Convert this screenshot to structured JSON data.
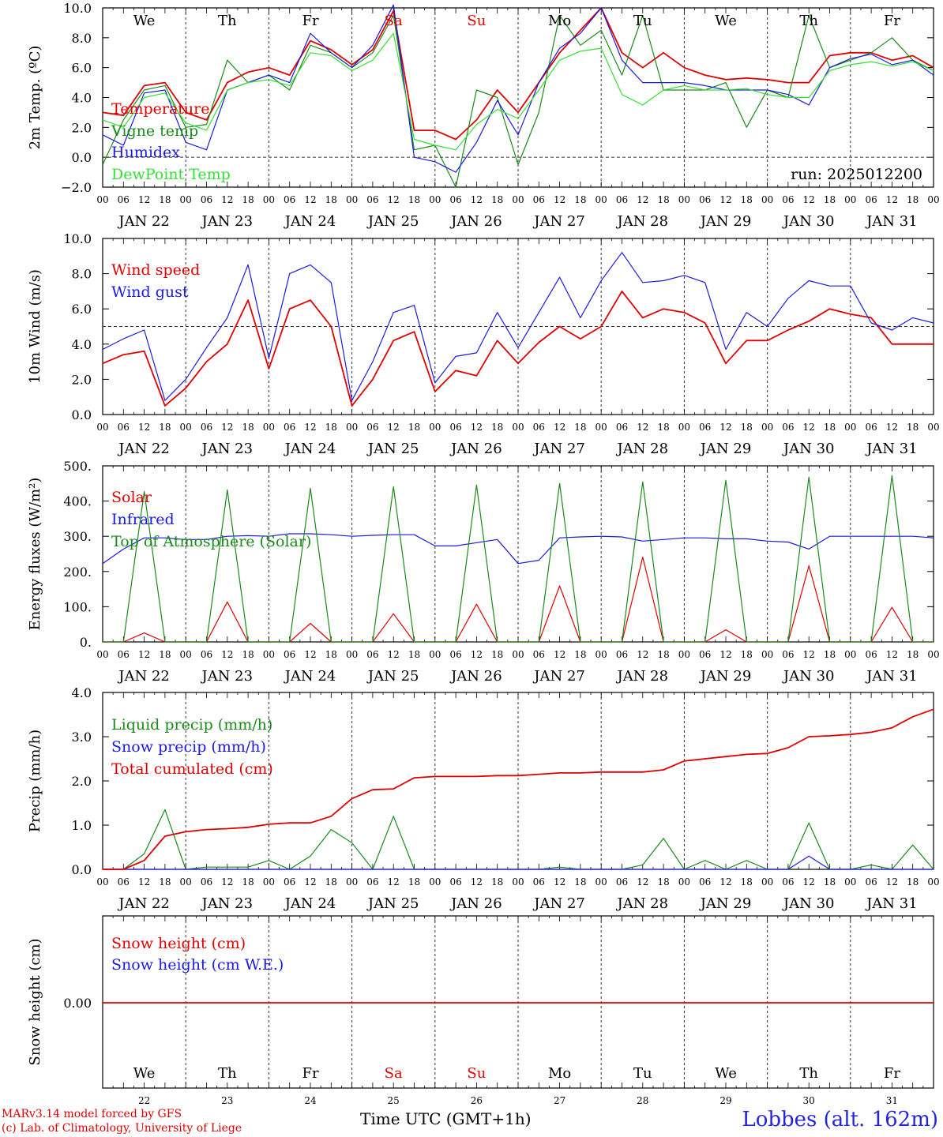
{
  "footer": {
    "model_line": "MARv3.14 model forced by GFS",
    "lab_line": "(c) Lab. of Climatology, University of Liege",
    "xaxis_title": "Time UTC (GMT+1h)",
    "station": "Lobbes (alt. 162m)"
  },
  "colors": {
    "red": "#e00000",
    "green": "#1a8a1a",
    "blue": "#1a1ae0",
    "lightgreen": "#33e033",
    "grid": "#555555"
  },
  "axis": {
    "days": [
      "JAN 22",
      "JAN 23",
      "JAN 24",
      "JAN 25",
      "JAN 26",
      "JAN 27",
      "JAN 28",
      "JAN 29",
      "JAN 30",
      "JAN 31"
    ],
    "hour_ticks": [
      "00",
      "06",
      "12",
      "18"
    ],
    "end_tick": "00",
    "weekdays": [
      "We",
      "Th",
      "Fr",
      "Sa",
      "Su",
      "Mo",
      "Tu",
      "We",
      "Th",
      "Fr"
    ],
    "weekend_color": "#e00000",
    "day_numbers": [
      "22",
      "23",
      "24",
      "25",
      "26",
      "27",
      "28",
      "29",
      "30",
      "31"
    ]
  },
  "chart_data": [
    {
      "type": "line",
      "ylabel": "2m Temp. (ºC)",
      "ylim": [
        -2,
        10
      ],
      "yticks": [
        "−2.0",
        "0.0",
        "2.0",
        "4.0",
        "6.0",
        "8.0",
        "10.0"
      ],
      "reference_line": 0,
      "annotation": "run: 2025012200",
      "x_hours_from_jan22_00": [
        0,
        6,
        12,
        18,
        24,
        30,
        36,
        42,
        48,
        54,
        60,
        66,
        72,
        78,
        84,
        90,
        96,
        102,
        108,
        114,
        120,
        126,
        132,
        138,
        144,
        150,
        156,
        162,
        168,
        174,
        180,
        186,
        192,
        198,
        204,
        210,
        216,
        222,
        228,
        234,
        240
      ],
      "series": [
        {
          "name": "Temperature",
          "color": "#e00000",
          "values": [
            3.0,
            2.8,
            4.8,
            5.0,
            3.0,
            2.5,
            5.0,
            5.7,
            6.0,
            5.5,
            7.8,
            7.2,
            6.2,
            7.2,
            9.8,
            1.8,
            1.8,
            1.2,
            2.5,
            4.5,
            3.0,
            5.0,
            7.0,
            8.5,
            10.0,
            7.0,
            6.0,
            7.0,
            6.0,
            5.5,
            5.2,
            5.3,
            5.2,
            5.0,
            5.0,
            6.8,
            7.0,
            7.0,
            6.5,
            6.8,
            6.0
          ]
        },
        {
          "name": "Vigne temp",
          "color": "#1a8a1a",
          "values": [
            -0.5,
            2.5,
            4.5,
            4.8,
            2.0,
            2.2,
            6.5,
            5.0,
            5.5,
            4.5,
            7.5,
            7.0,
            6.0,
            7.0,
            9.5,
            0.5,
            0.8,
            -2.0,
            4.5,
            4.0,
            -0.5,
            3.0,
            9.5,
            7.5,
            8.5,
            5.5,
            9.5,
            4.5,
            4.5,
            4.5,
            5.0,
            2.0,
            4.5,
            4.0,
            9.5,
            6.0,
            6.5,
            7.0,
            8.0,
            6.5,
            5.8
          ]
        },
        {
          "name": "Humidex",
          "color": "#1a1ae0",
          "values": [
            1.5,
            0.8,
            4.3,
            4.5,
            1.0,
            0.5,
            4.5,
            5.0,
            5.5,
            5.0,
            8.3,
            7.0,
            6.0,
            7.5,
            10.2,
            0.0,
            -0.3,
            -1.0,
            1.0,
            3.8,
            1.5,
            5.0,
            7.3,
            8.3,
            10.0,
            6.5,
            5.0,
            5.0,
            5.0,
            4.8,
            4.5,
            4.5,
            4.5,
            4.2,
            3.5,
            6.0,
            6.6,
            6.9,
            6.2,
            6.5,
            5.5
          ]
        },
        {
          "name": "DewPoint Temp",
          "color": "#33e033",
          "values": [
            2.5,
            2.0,
            4.0,
            4.3,
            2.3,
            1.8,
            4.5,
            5.0,
            5.2,
            4.8,
            7.0,
            6.8,
            5.8,
            6.5,
            8.3,
            1.2,
            0.8,
            0.5,
            2.2,
            3.2,
            2.6,
            4.5,
            6.5,
            7.1,
            7.3,
            4.2,
            3.5,
            4.5,
            4.8,
            4.5,
            4.5,
            4.6,
            4.2,
            4.0,
            4.0,
            5.8,
            6.2,
            6.4,
            6.1,
            6.4,
            5.8
          ]
        }
      ]
    },
    {
      "type": "line",
      "ylabel": "10m Wind (m/s)",
      "ylim": [
        0,
        10
      ],
      "yticks": [
        "0.0",
        "2.0",
        "4.0",
        "6.0",
        "8.0",
        "10.0"
      ],
      "reference_line": 5,
      "x_hours_from_jan22_00": [
        0,
        6,
        12,
        18,
        24,
        30,
        36,
        42,
        48,
        54,
        60,
        66,
        72,
        78,
        84,
        90,
        96,
        102,
        108,
        114,
        120,
        126,
        132,
        138,
        144,
        150,
        156,
        162,
        168,
        174,
        180,
        186,
        192,
        198,
        204,
        210,
        216,
        222,
        228,
        234,
        240
      ],
      "series": [
        {
          "name": "Wind speed",
          "color": "#e00000",
          "values": [
            2.9,
            3.4,
            3.6,
            0.5,
            1.5,
            3.0,
            4.0,
            6.5,
            2.6,
            6.0,
            6.5,
            5.0,
            0.5,
            2.0,
            4.2,
            4.7,
            1.3,
            2.5,
            2.2,
            4.2,
            2.9,
            4.1,
            5.0,
            4.3,
            5.0,
            7.0,
            5.5,
            6.0,
            5.8,
            5.2,
            2.9,
            4.2,
            4.2,
            4.8,
            5.3,
            6.0,
            5.7,
            5.5,
            4.0,
            4.0,
            4.0
          ]
        },
        {
          "name": "Wind gust",
          "color": "#1a1ae0",
          "values": [
            3.7,
            4.3,
            4.8,
            0.8,
            2.0,
            3.8,
            5.5,
            8.5,
            3.2,
            8.0,
            8.5,
            7.5,
            0.8,
            3.0,
            5.8,
            6.2,
            1.8,
            3.3,
            3.5,
            5.8,
            3.8,
            5.8,
            7.8,
            5.5,
            7.6,
            9.2,
            7.5,
            7.6,
            7.9,
            7.5,
            3.7,
            5.8,
            5.0,
            6.6,
            7.6,
            7.3,
            7.3,
            5.2,
            4.8,
            5.5,
            5.2
          ]
        }
      ]
    },
    {
      "type": "line",
      "ylabel": "Energy fluxes (W/m²)",
      "ylim": [
        0,
        550
      ],
      "yticks": [
        "0.",
        "100.",
        "200.",
        "300.",
        "400.",
        "500."
      ],
      "x_hours_from_jan22_00": [
        0,
        6,
        12,
        18,
        24,
        30,
        36,
        42,
        48,
        54,
        60,
        66,
        72,
        78,
        84,
        90,
        96,
        102,
        108,
        114,
        120,
        126,
        132,
        138,
        144,
        150,
        156,
        162,
        168,
        174,
        180,
        186,
        192,
        198,
        204,
        210,
        216,
        222,
        228,
        234,
        240
      ],
      "series": [
        {
          "name": "Solar",
          "color": "#e00000",
          "values": [
            0,
            0,
            28,
            0,
            0,
            0,
            125,
            0,
            0,
            0,
            58,
            0,
            0,
            0,
            88,
            0,
            0,
            0,
            118,
            0,
            0,
            0,
            175,
            0,
            0,
            0,
            265,
            0,
            0,
            0,
            38,
            0,
            0,
            0,
            238,
            0,
            0,
            0,
            108,
            0,
            0
          ]
        },
        {
          "name": "Infrared",
          "color": "#1a1ae0",
          "values": [
            245,
            290,
            325,
            325,
            320,
            320,
            330,
            332,
            330,
            338,
            338,
            335,
            330,
            333,
            335,
            335,
            300,
            300,
            310,
            320,
            245,
            255,
            325,
            328,
            330,
            328,
            315,
            320,
            325,
            325,
            322,
            322,
            315,
            312,
            290,
            330,
            330,
            330,
            330,
            330,
            325
          ]
        },
        {
          "name": "Top of Atmosphere (Solar)",
          "color": "#1a8a1a",
          "values": [
            0,
            0,
            470,
            0,
            0,
            0,
            475,
            0,
            0,
            0,
            480,
            0,
            0,
            0,
            485,
            0,
            0,
            0,
            490,
            0,
            0,
            0,
            495,
            0,
            0,
            0,
            500,
            0,
            0,
            0,
            505,
            0,
            0,
            0,
            515,
            0,
            0,
            0,
            520,
            0,
            0
          ]
        }
      ]
    },
    {
      "type": "line",
      "ylabel": "Precip (mm/h)",
      "ylim": [
        0,
        4
      ],
      "yticks": [
        "0.0",
        "1.0",
        "2.0",
        "3.0",
        "4.0"
      ],
      "x_hours_from_jan22_00": [
        0,
        6,
        12,
        18,
        24,
        30,
        36,
        42,
        48,
        54,
        60,
        66,
        72,
        78,
        84,
        90,
        96,
        102,
        108,
        114,
        120,
        126,
        132,
        138,
        144,
        150,
        156,
        162,
        168,
        174,
        180,
        186,
        192,
        198,
        204,
        210,
        216,
        222,
        228,
        234,
        240
      ],
      "series": [
        {
          "name": "Liquid precip (mm/h)",
          "color": "#1a8a1a",
          "values": [
            0,
            0,
            0.35,
            1.35,
            0,
            0.05,
            0.05,
            0.05,
            0.2,
            0,
            0.3,
            0.9,
            0.6,
            0,
            1.2,
            0,
            0,
            0,
            0,
            0,
            0,
            0,
            0.05,
            0,
            0,
            0,
            0.1,
            0.7,
            0,
            0.2,
            0,
            0.2,
            0,
            0,
            1.05,
            0,
            0,
            0.1,
            0,
            0.55,
            0
          ]
        },
        {
          "name": "Snow precip (mm/h)",
          "color": "#1a1ae0",
          "values": [
            0,
            0,
            0,
            0,
            0,
            0,
            0,
            0,
            0,
            0,
            0,
            0,
            0,
            0,
            0,
            0,
            0,
            0,
            0,
            0,
            0,
            0,
            0,
            0,
            0,
            0,
            0,
            0,
            0,
            0,
            0,
            0,
            0,
            0,
            0.3,
            0,
            0,
            0,
            0,
            0,
            0
          ]
        },
        {
          "name": "Total cumulated (cm)",
          "color": "#e00000",
          "values": [
            0,
            0,
            0.2,
            0.75,
            0.85,
            0.9,
            0.92,
            0.95,
            1.02,
            1.05,
            1.05,
            1.2,
            1.6,
            1.8,
            1.82,
            2.07,
            2.1,
            2.1,
            2.1,
            2.12,
            2.12,
            2.15,
            2.18,
            2.18,
            2.2,
            2.2,
            2.2,
            2.25,
            2.45,
            2.5,
            2.55,
            2.6,
            2.62,
            2.75,
            3.0,
            3.02,
            3.05,
            3.1,
            3.2,
            3.45,
            3.62
          ]
        }
      ]
    },
    {
      "type": "line",
      "ylabel": "Snow height (cm)",
      "yticks": [
        "0.00"
      ],
      "x_hours_from_jan22_00": [
        0,
        240
      ],
      "series": [
        {
          "name": "Snow height (cm)",
          "color": "#e00000",
          "values": [
            0,
            0
          ]
        },
        {
          "name": "Snow height (cm W.E.)",
          "color": "#1a1ae0",
          "values": [
            0,
            0
          ]
        }
      ]
    }
  ]
}
